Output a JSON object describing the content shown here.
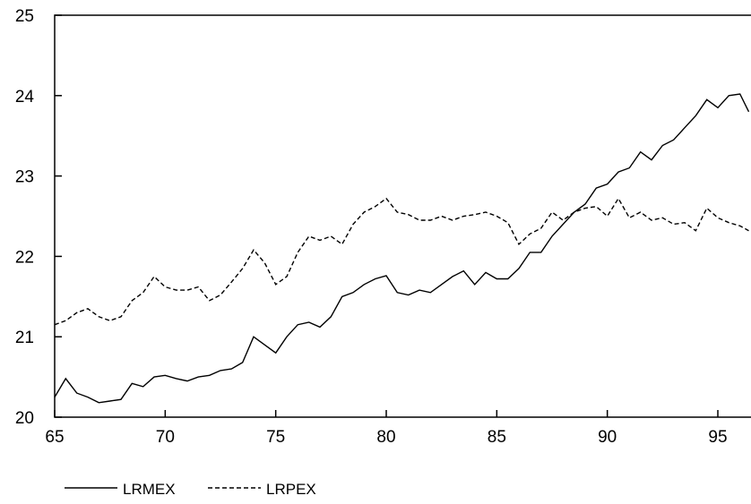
{
  "chart_data": {
    "type": "line",
    "title": "",
    "xlabel": "",
    "ylabel": "",
    "xlim": [
      65,
      96.5
    ],
    "ylim": [
      20,
      25
    ],
    "x_ticks": [
      65,
      70,
      75,
      80,
      85,
      90,
      95
    ],
    "x_tick_labels": [
      "65",
      "70",
      "75",
      "80",
      "85",
      "90",
      "95"
    ],
    "y_ticks": [
      20,
      21,
      22,
      23,
      24,
      25
    ],
    "y_tick_labels": [
      "20",
      "21",
      "22",
      "23",
      "24",
      "25"
    ],
    "grid": false,
    "legend_position": "bottom-left",
    "series": [
      {
        "name": "LRMEX",
        "style": "solid",
        "color": "#000000",
        "x": [
          65.0,
          65.5,
          66.0,
          66.5,
          67.0,
          67.5,
          68.0,
          68.5,
          69.0,
          69.5,
          70.0,
          70.5,
          71.0,
          71.5,
          72.0,
          72.5,
          73.0,
          73.5,
          74.0,
          74.5,
          75.0,
          75.5,
          76.0,
          76.5,
          77.0,
          77.5,
          78.0,
          78.5,
          79.0,
          79.5,
          80.0,
          80.5,
          81.0,
          81.5,
          82.0,
          82.5,
          83.0,
          83.5,
          84.0,
          84.5,
          85.0,
          85.5,
          86.0,
          86.5,
          87.0,
          87.5,
          88.0,
          88.5,
          89.0,
          89.5,
          90.0,
          90.5,
          91.0,
          91.5,
          92.0,
          92.5,
          93.0,
          93.5,
          94.0,
          94.5,
          95.0,
          95.5,
          96.0,
          96.4
        ],
        "values": [
          20.25,
          20.48,
          20.3,
          20.25,
          20.18,
          20.2,
          20.22,
          20.42,
          20.38,
          20.5,
          20.52,
          20.48,
          20.45,
          20.5,
          20.52,
          20.58,
          20.6,
          20.68,
          21.0,
          20.9,
          20.8,
          21.0,
          21.15,
          21.18,
          21.12,
          21.25,
          21.5,
          21.55,
          21.65,
          21.72,
          21.76,
          21.55,
          21.52,
          21.58,
          21.55,
          21.65,
          21.75,
          21.82,
          21.65,
          21.8,
          21.72,
          21.72,
          21.85,
          22.05,
          22.05,
          22.25,
          22.4,
          22.55,
          22.65,
          22.85,
          22.9,
          23.05,
          23.1,
          23.3,
          23.2,
          23.38,
          23.45,
          23.6,
          23.75,
          23.95,
          23.85,
          24.0,
          24.02,
          23.8
        ]
      },
      {
        "name": "LRPEX",
        "style": "dashed",
        "color": "#000000",
        "x": [
          65.0,
          65.5,
          66.0,
          66.5,
          67.0,
          67.5,
          68.0,
          68.5,
          69.0,
          69.5,
          70.0,
          70.5,
          71.0,
          71.5,
          72.0,
          72.5,
          73.0,
          73.5,
          74.0,
          74.5,
          75.0,
          75.5,
          76.0,
          76.5,
          77.0,
          77.5,
          78.0,
          78.5,
          79.0,
          79.5,
          80.0,
          80.5,
          81.0,
          81.5,
          82.0,
          82.5,
          83.0,
          83.5,
          84.0,
          84.5,
          85.0,
          85.5,
          86.0,
          86.5,
          87.0,
          87.5,
          88.0,
          88.5,
          89.0,
          89.5,
          90.0,
          90.5,
          91.0,
          91.5,
          92.0,
          92.5,
          93.0,
          93.5,
          94.0,
          94.5,
          95.0,
          95.5,
          96.0,
          96.4
        ],
        "values": [
          21.15,
          21.2,
          21.3,
          21.35,
          21.25,
          21.2,
          21.25,
          21.45,
          21.55,
          21.75,
          21.62,
          21.58,
          21.58,
          21.62,
          21.45,
          21.52,
          21.68,
          21.85,
          22.08,
          21.92,
          21.65,
          21.75,
          22.05,
          22.25,
          22.2,
          22.25,
          22.15,
          22.4,
          22.55,
          22.62,
          22.72,
          22.55,
          22.52,
          22.45,
          22.45,
          22.5,
          22.45,
          22.5,
          22.52,
          22.55,
          22.5,
          22.42,
          22.15,
          22.28,
          22.35,
          22.55,
          22.45,
          22.55,
          22.6,
          22.62,
          22.5,
          22.72,
          22.48,
          22.55,
          22.45,
          22.48,
          22.4,
          22.42,
          22.32,
          22.6,
          22.48,
          22.42,
          22.38,
          22.32
        ]
      }
    ]
  }
}
